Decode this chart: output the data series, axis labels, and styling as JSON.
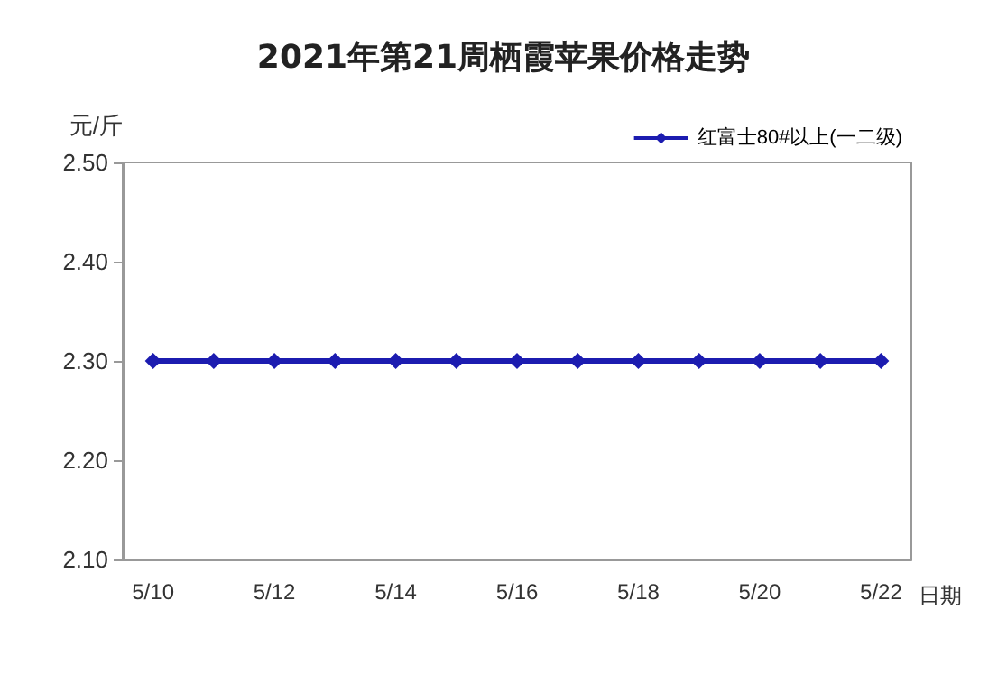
{
  "chart_data": {
    "type": "line",
    "title": "2021年第21周栖霞苹果价格走势",
    "ylabel": "元/斤",
    "xlabel": "日期",
    "categories": [
      "5/10",
      null,
      "5/12",
      null,
      "5/14",
      null,
      "5/16",
      null,
      "5/18",
      null,
      "5/20",
      null,
      "5/22"
    ],
    "series": [
      {
        "name": "红富士80#以上(一二级)",
        "color": "#1c1cb0",
        "values": [
          2.3,
          2.3,
          2.3,
          2.3,
          2.3,
          2.3,
          2.3,
          2.3,
          2.3,
          2.3,
          2.3,
          2.3,
          2.3
        ]
      }
    ],
    "ylim": [
      2.1,
      2.5
    ],
    "yticks": [
      {
        "value": 2.1,
        "label": "2.10"
      },
      {
        "value": 2.2,
        "label": "2.20"
      },
      {
        "value": 2.3,
        "label": "2.30"
      },
      {
        "value": 2.4,
        "label": "2.40"
      },
      {
        "value": 2.5,
        "label": "2.50"
      }
    ],
    "grid": false,
    "legend": "top right",
    "marker": "diamond",
    "line_style": "solid"
  }
}
